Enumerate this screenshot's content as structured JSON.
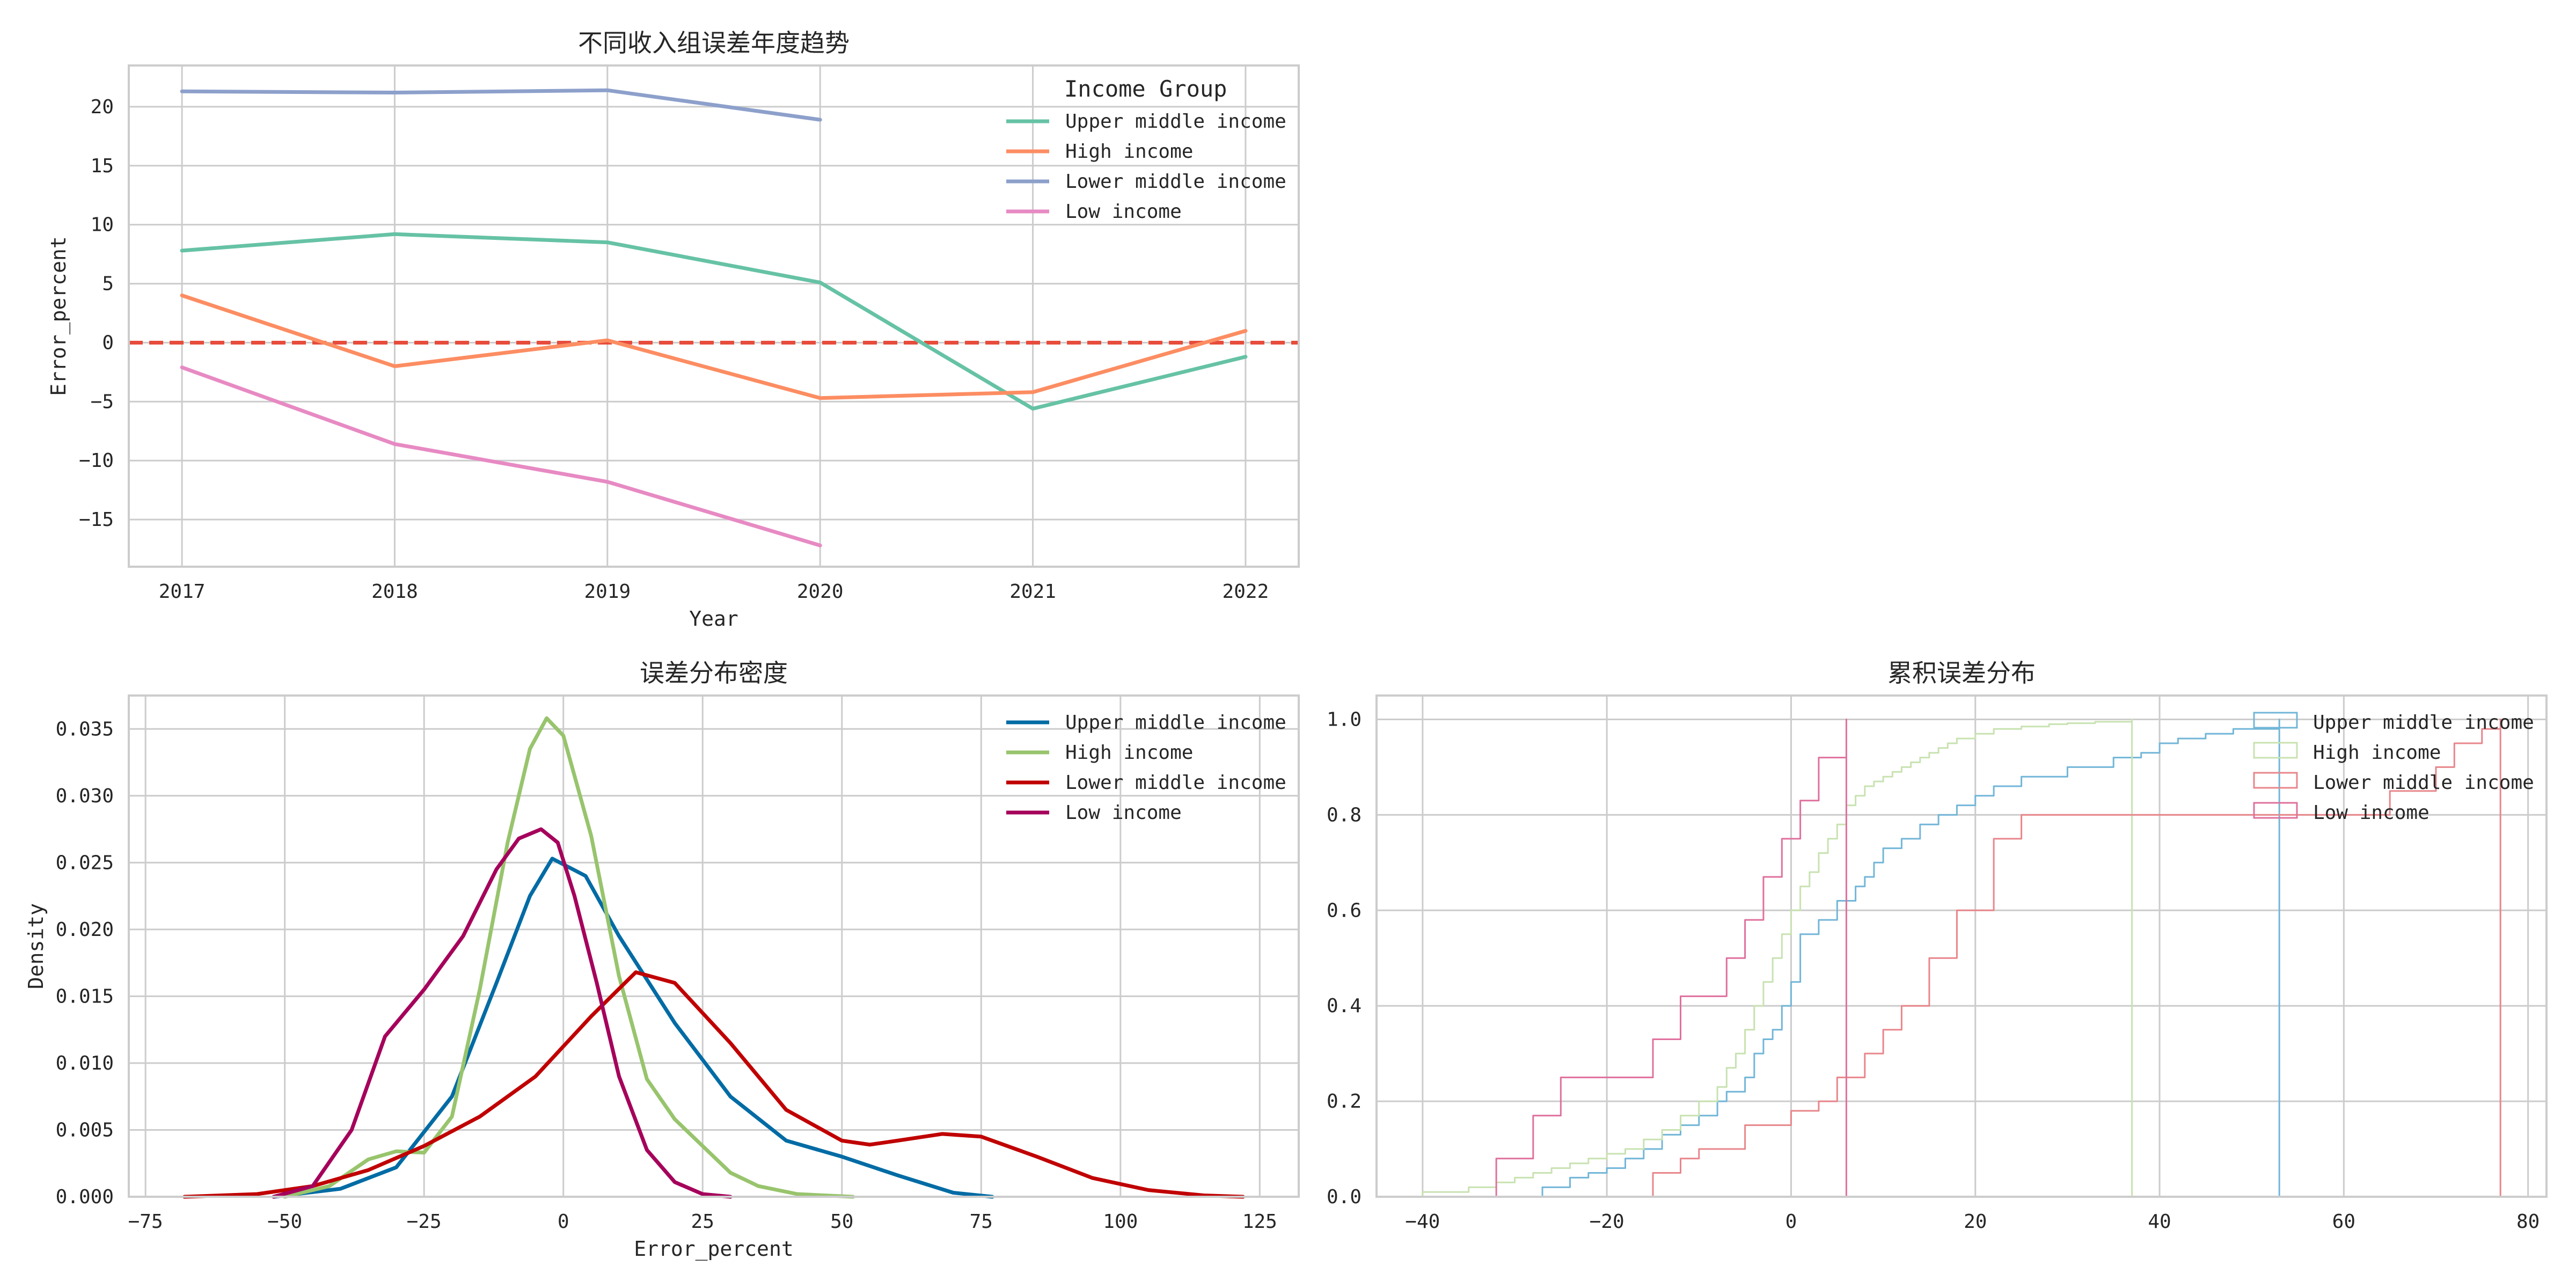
{
  "chart_data": [
    {
      "type": "line",
      "title": "不同收入组误差年度趋势",
      "xlabel": "Year",
      "ylabel": "Error_percent",
      "x": [
        2017,
        2018,
        2019,
        2020,
        2021,
        2022
      ],
      "xlim": [
        2016.75,
        2022.25
      ],
      "ylim": [
        -19,
        23.5
      ],
      "yticks": [
        -15,
        -10,
        -5,
        0,
        5,
        10,
        15,
        20
      ],
      "legend_title": "Income Group",
      "legend_position": "top-right",
      "reference_line": {
        "y": 0,
        "color": "#e74c3c",
        "style": "dashed"
      },
      "series": [
        {
          "name": "Upper middle income",
          "color": "#66c2a5",
          "values": [
            7.8,
            9.2,
            8.5,
            5.1,
            -5.6,
            -1.2
          ]
        },
        {
          "name": "High income",
          "color": "#fc8d62",
          "values": [
            4.0,
            -2.0,
            0.2,
            -4.7,
            -4.2,
            1.0
          ]
        },
        {
          "name": "Lower middle income",
          "color": "#8da0cb",
          "values": [
            21.3,
            21.2,
            21.4,
            18.9,
            null,
            null
          ]
        },
        {
          "name": "Low income",
          "color": "#e78ac3",
          "values": [
            -2.1,
            -8.6,
            -11.8,
            -17.2,
            null,
            null
          ]
        }
      ]
    },
    {
      "type": "line",
      "title": "误差分布密度",
      "xlabel": "Error_percent",
      "ylabel": "Density",
      "xlim": [
        -78,
        132
      ],
      "ylim": [
        0,
        0.0375
      ],
      "xticks": [
        -75,
        -50,
        -25,
        0,
        25,
        50,
        75,
        100,
        125
      ],
      "yticks": [
        0.0,
        0.005,
        0.01,
        0.015,
        0.02,
        0.025,
        0.03,
        0.035
      ],
      "ytick_labels": [
        "0.000",
        "0.005",
        "0.010",
        "0.015",
        "0.020",
        "0.025",
        "0.030",
        "0.035"
      ],
      "legend_position": "top-right",
      "series": [
        {
          "name": "Upper middle income",
          "color": "#006ba4",
          "x": [
            -52,
            -40,
            -30,
            -20,
            -12,
            -6,
            -2,
            4,
            10,
            20,
            30,
            40,
            50,
            60,
            70,
            77
          ],
          "values": [
            0,
            0.0006,
            0.0022,
            0.0075,
            0.016,
            0.0225,
            0.0253,
            0.024,
            0.0195,
            0.013,
            0.0075,
            0.0042,
            0.003,
            0.0016,
            0.0003,
            0
          ]
        },
        {
          "name": "High income",
          "color": "#98c46d",
          "x": [
            -50,
            -42,
            -35,
            -30,
            -25,
            -20,
            -15,
            -10,
            -6,
            -3,
            0,
            5,
            10,
            15,
            20,
            25,
            30,
            35,
            42,
            52
          ],
          "values": [
            0,
            0.0008,
            0.0028,
            0.0034,
            0.0033,
            0.006,
            0.0155,
            0.0265,
            0.0335,
            0.0358,
            0.0345,
            0.027,
            0.0165,
            0.0088,
            0.0058,
            0.0038,
            0.0018,
            0.0008,
            0.0002,
            0
          ]
        },
        {
          "name": "Lower middle income",
          "color": "#c00000",
          "x": [
            -68,
            -55,
            -45,
            -35,
            -25,
            -15,
            -5,
            5,
            13,
            20,
            30,
            40,
            50,
            55,
            60,
            68,
            75,
            85,
            95,
            105,
            115,
            122
          ],
          "values": [
            0,
            0.0002,
            0.0008,
            0.002,
            0.0038,
            0.006,
            0.009,
            0.0135,
            0.0168,
            0.016,
            0.0115,
            0.0065,
            0.0042,
            0.0039,
            0.0042,
            0.0047,
            0.0045,
            0.003,
            0.0014,
            0.0005,
            0.0001,
            0
          ]
        },
        {
          "name": "Low income",
          "color": "#a5005b",
          "x": [
            -52,
            -45,
            -38,
            -32,
            -25,
            -18,
            -12,
            -8,
            -4,
            -1,
            2,
            6,
            10,
            15,
            20,
            25,
            30
          ],
          "values": [
            0,
            0.0008,
            0.005,
            0.012,
            0.0155,
            0.0195,
            0.0245,
            0.0268,
            0.0275,
            0.0265,
            0.0225,
            0.016,
            0.009,
            0.0035,
            0.0011,
            0.0002,
            0
          ]
        }
      ]
    },
    {
      "type": "line",
      "title": "累积误差分布",
      "xlabel": "",
      "ylabel": "",
      "xlim": [
        -45,
        82
      ],
      "ylim": [
        0,
        1.05
      ],
      "xticks": [
        -40,
        -20,
        0,
        20,
        40,
        60,
        80
      ],
      "yticks": [
        0.0,
        0.2,
        0.4,
        0.6,
        0.8,
        1.0
      ],
      "legend_position": "top-right",
      "series": [
        {
          "name": "Upper middle income",
          "color": "#72b6d8",
          "x": [
            -27,
            -24,
            -22,
            -20,
            -18,
            -16,
            -14,
            -12,
            -10,
            -8,
            -7,
            -5,
            -4,
            -3,
            -2,
            -1,
            0,
            1,
            3,
            5,
            7,
            8,
            9,
            10,
            12,
            14,
            16,
            18,
            20,
            22,
            25,
            30,
            35,
            38,
            40,
            42,
            45,
            48,
            53
          ],
          "values": [
            0.02,
            0.04,
            0.05,
            0.06,
            0.08,
            0.1,
            0.13,
            0.15,
            0.17,
            0.2,
            0.22,
            0.25,
            0.3,
            0.33,
            0.35,
            0.4,
            0.45,
            0.55,
            0.58,
            0.62,
            0.65,
            0.67,
            0.7,
            0.73,
            0.75,
            0.78,
            0.8,
            0.82,
            0.84,
            0.86,
            0.88,
            0.9,
            0.92,
            0.93,
            0.95,
            0.96,
            0.97,
            0.98,
            1.0
          ]
        },
        {
          "name": "High income",
          "color": "#c8e2b1",
          "x": [
            -40,
            -35,
            -32,
            -30,
            -28,
            -26,
            -24,
            -22,
            -20,
            -18,
            -16,
            -14,
            -12,
            -10,
            -8,
            -7,
            -6,
            -5,
            -4,
            -3,
            -2,
            -1,
            0,
            1,
            2,
            3,
            4,
            5,
            6,
            7,
            8,
            9,
            10,
            11,
            12,
            13,
            14,
            15,
            16,
            17,
            18,
            20,
            22,
            25,
            28,
            30,
            33,
            37
          ],
          "values": [
            0.01,
            0.02,
            0.03,
            0.04,
            0.05,
            0.06,
            0.07,
            0.08,
            0.09,
            0.1,
            0.12,
            0.14,
            0.17,
            0.2,
            0.23,
            0.27,
            0.3,
            0.35,
            0.4,
            0.45,
            0.5,
            0.55,
            0.6,
            0.65,
            0.68,
            0.72,
            0.75,
            0.78,
            0.82,
            0.84,
            0.86,
            0.87,
            0.88,
            0.89,
            0.9,
            0.91,
            0.92,
            0.93,
            0.94,
            0.95,
            0.96,
            0.97,
            0.98,
            0.985,
            0.99,
            0.992,
            0.995,
            1.0
          ]
        },
        {
          "name": "Lower middle income",
          "color": "#e8868b",
          "x": [
            -15,
            -12,
            -10,
            -5,
            0,
            3,
            5,
            8,
            10,
            12,
            15,
            18,
            22,
            25,
            35,
            45,
            50,
            55,
            65,
            70,
            72,
            75,
            77
          ],
          "values": [
            0.05,
            0.08,
            0.1,
            0.15,
            0.18,
            0.2,
            0.25,
            0.3,
            0.35,
            0.4,
            0.5,
            0.6,
            0.75,
            0.8,
            0.8,
            0.8,
            0.8,
            0.8,
            0.85,
            0.9,
            0.95,
            0.98,
            1.0
          ]
        },
        {
          "name": "Low income",
          "color": "#e0709e",
          "x": [
            -32,
            -28,
            -25,
            -20,
            -18,
            -15,
            -12,
            -10,
            -7,
            -5,
            -3,
            -1,
            1,
            2,
            3,
            5,
            6
          ],
          "values": [
            0.08,
            0.17,
            0.25,
            0.25,
            0.25,
            0.33,
            0.42,
            0.42,
            0.5,
            0.58,
            0.67,
            0.75,
            0.83,
            0.83,
            0.92,
            0.92,
            1.0
          ]
        }
      ]
    }
  ]
}
